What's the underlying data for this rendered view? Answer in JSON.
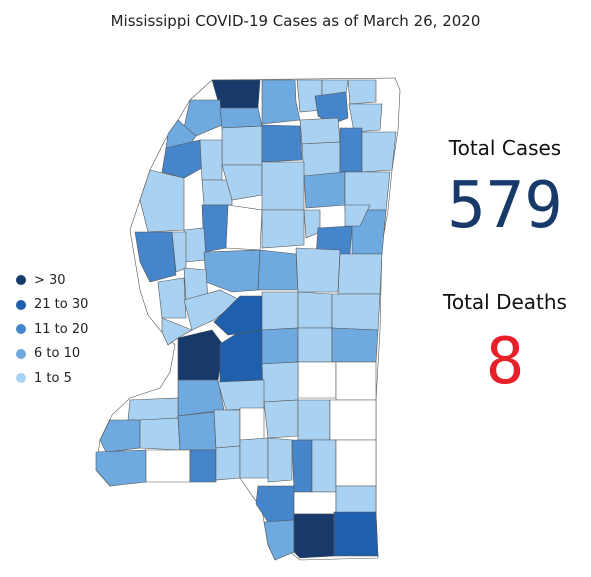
{
  "title": "Mississippi COVID-19 Cases as of March 26, 2020",
  "legend": {
    "items": [
      {
        "label": "> 30",
        "color": "#173a6b"
      },
      {
        "label": "21 to 30",
        "color": "#1e5fae"
      },
      {
        "label": "11 to 20",
        "color": "#4585cc"
      },
      {
        "label": "6 to 10",
        "color": "#6ea9df"
      },
      {
        "label": "1 to 5",
        "color": "#a9d2f2"
      }
    ]
  },
  "colors": {
    "zero": "#ffffff",
    "total_cases": "#173a6b",
    "total_deaths": "#e8202a"
  },
  "stats": {
    "cases_label": "Total Cases",
    "cases_value": "579",
    "deaths_label": "Total Deaths",
    "deaths_value": "8"
  }
}
